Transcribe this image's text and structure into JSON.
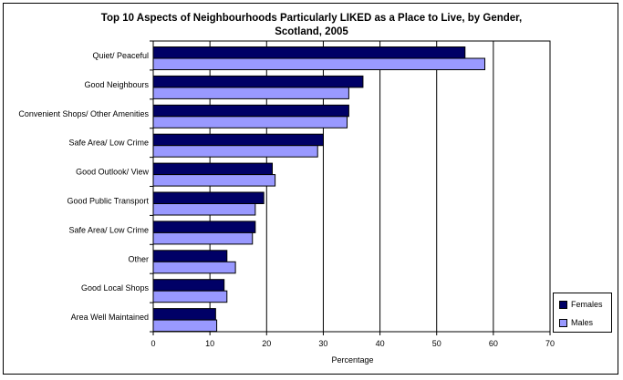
{
  "chart_data": {
    "type": "bar",
    "orientation": "horizontal",
    "title_line1": "Top 10 Aspects of Neighbourhoods Particularly LIKED as a Place to Live, by Gender,",
    "title_line2": "Scotland, 2005",
    "xlabel": "Percentage",
    "ylabel": "",
    "xlim": [
      0,
      70
    ],
    "xticks": [
      "0",
      "10",
      "20",
      "30",
      "40",
      "50",
      "60",
      "70"
    ],
    "grid": true,
    "legend_position": "right-bottom",
    "categories": [
      "Quiet/ Peaceful",
      "Good Neighbours",
      "Convenient Shops/ Other Amenities",
      "Safe Area/ Low Crime",
      "Good Outlook/ View",
      "Good Public Transport",
      "Safe Area/ Low Crime",
      "Other",
      "Good Local Shops",
      "Area Well Maintained"
    ],
    "series": [
      {
        "name": "Females",
        "color": "#000066",
        "values": [
          55,
          37,
          34.5,
          30,
          21,
          19.5,
          18,
          13,
          12.5,
          11
        ]
      },
      {
        "name": "Males",
        "color": "#9999ff",
        "values": [
          58.5,
          34.5,
          34.2,
          29,
          21.5,
          18,
          17.5,
          14.5,
          13,
          11.2
        ]
      }
    ]
  }
}
